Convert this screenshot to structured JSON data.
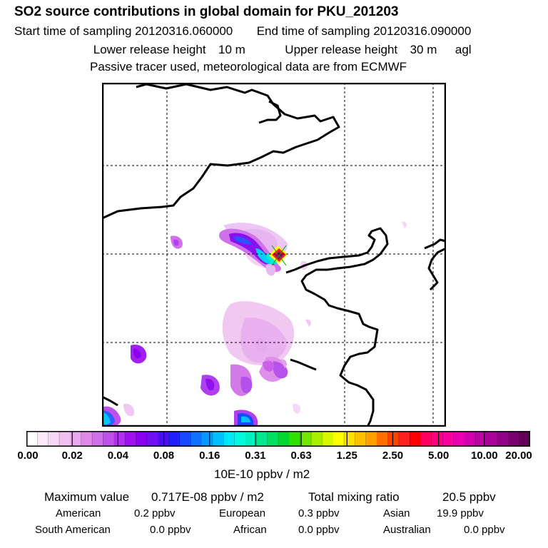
{
  "header": {
    "title": "SO2 source contributions in global domain for PKU_201203",
    "start_label": "Start time of sampling",
    "start_value": "20120316.060000",
    "end_label": "End time of sampling",
    "end_value": "20120316.090000",
    "lower_label": "Lower release height",
    "lower_value": "10 m",
    "upper_label": "Upper release height",
    "upper_value": "30 m",
    "agl": "agl",
    "note": "Passive tracer used, meteorological data are from ECMWF"
  },
  "colorbar": {
    "ticks": [
      "0.00",
      "0.02",
      "0.04",
      "0.08",
      "0.16",
      "0.31",
      "0.63",
      "1.25",
      "2.50",
      "5.00",
      "10.00",
      "20.00"
    ],
    "colors": [
      "#ffffff",
      "#fbe8fb",
      "#f6d6f6",
      "#f0c0f0",
      "#e8a8ee",
      "#de88ea",
      "#d070ea",
      "#c050ea",
      "#b030ee",
      "#a010f0",
      "#8c00f0",
      "#7010f0",
      "#4a10f0",
      "#2020ff",
      "#1848ff",
      "#1070ff",
      "#0898ff",
      "#00c0ff",
      "#00e8f8",
      "#00f8e0",
      "#00f0c0",
      "#00e890",
      "#00e060",
      "#00d830",
      "#30e000",
      "#70e800",
      "#a8f000",
      "#d8f800",
      "#ffff00",
      "#ffe000",
      "#ffc000",
      "#ffa000",
      "#ff7000",
      "#ff4000",
      "#ff2020",
      "#ff0000",
      "#ff0060",
      "#ff0080",
      "#f800a0",
      "#e800b0",
      "#d000b0",
      "#c000a8",
      "#a80098",
      "#900088",
      "#780070",
      "#600058"
    ],
    "unit": "10E-10 ppbv / m2"
  },
  "stats": {
    "max_label": "Maximum value",
    "max_value": "0.717E-08 ppbv / m2",
    "total_label": "Total mixing ratio",
    "total_value": "20.5 ppbv",
    "regions": [
      {
        "name": "American",
        "value": "0.2 ppbv"
      },
      {
        "name": "European",
        "value": "0.3 ppbv"
      },
      {
        "name": "Asian",
        "value": "19.9 ppbv"
      },
      {
        "name": "South American",
        "value": "0.0 ppbv"
      },
      {
        "name": "African",
        "value": "0.0 ppbv"
      },
      {
        "name": "Australian",
        "value": "0.0 ppbv"
      }
    ]
  }
}
